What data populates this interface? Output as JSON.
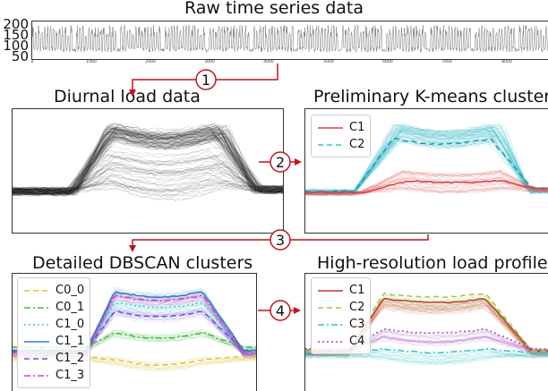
{
  "titles": {
    "raw": "Raw time series data",
    "diurnal": "Diurnal load data",
    "kmeans": "Preliminary K-means clusters",
    "dbscan": "Detailed DBSCAN clusters",
    "highres": "High-resolution load profiles"
  },
  "raw_axis": {
    "y_ticks": [
      "200",
      "150",
      "100",
      "50"
    ],
    "x_ticks": [
      "0",
      "1000",
      "2000",
      "3000",
      "4000",
      "5000",
      "6000",
      "7000",
      "8000"
    ]
  },
  "steps": [
    "1",
    "2",
    "3",
    "4"
  ],
  "kmeans_legend": [
    {
      "label": "C1",
      "color": "#d94040",
      "dash": "solid"
    },
    {
      "label": "C2",
      "color": "#3fbfcc",
      "dash": "dashed"
    }
  ],
  "dbscan_legend": [
    {
      "label": "C0_0",
      "color": "#e0c040",
      "dash": "dashed"
    },
    {
      "label": "C0_1",
      "color": "#44bb44",
      "dash": "dashdot"
    },
    {
      "label": "C1_0",
      "color": "#45c8c8",
      "dash": "dotted"
    },
    {
      "label": "C1_1",
      "color": "#2a7fc0",
      "dash": "solid"
    },
    {
      "label": "C1_2",
      "color": "#6a4fd8",
      "dash": "dashed"
    },
    {
      "label": "C1_3",
      "color": "#d040c8",
      "dash": "dashdot"
    }
  ],
  "highres_legend": [
    {
      "label": "C1",
      "color": "#c0392b",
      "dash": "solid"
    },
    {
      "label": "C2",
      "color": "#99cc44",
      "dash": "dashed"
    },
    {
      "label": "C3",
      "color": "#33c2c2",
      "dash": "dashdot"
    },
    {
      "label": "C4",
      "color": "#a040c0",
      "dash": "dotted"
    }
  ],
  "colors": {
    "arrow": "#c0141e",
    "frame": "#333333"
  }
}
